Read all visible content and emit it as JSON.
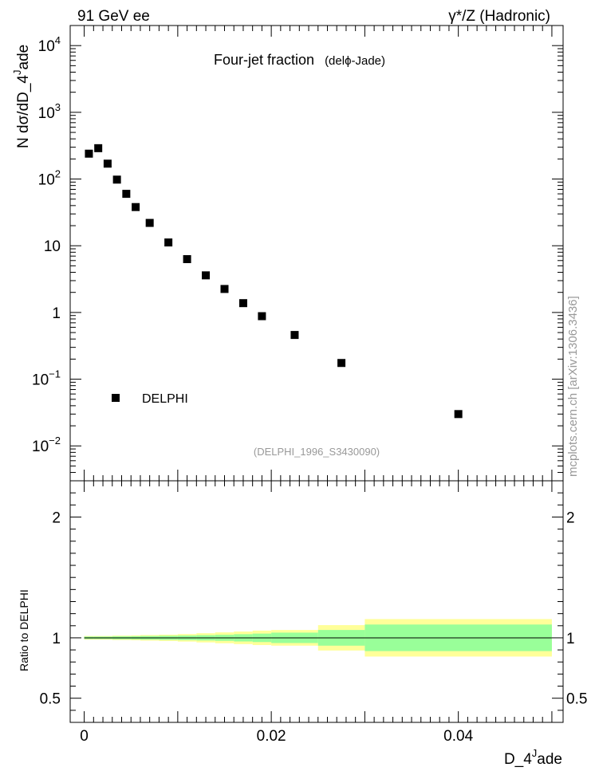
{
  "header": {
    "left": "91 GeV ee",
    "right": "γ*/Z (Hadronic)"
  },
  "watermark": "mcplots.cern.ch [arXiv:1306.3436]",
  "chart_data": [
    {
      "type": "scatter",
      "title": "Four-jet fraction",
      "subtitle": "(delϕ-Jade)",
      "analysis_id": "(DELPHI_1996_S3430090)",
      "ylabel": "N dσ/dD_4^Jade",
      "xlabel": "D_4^Jade",
      "ylog": true,
      "xlim": [
        -0.0015,
        0.0512
      ],
      "ylim": [
        0.003,
        20000
      ],
      "ytick_labels": [
        "10^-2",
        "10^-1",
        "1",
        "10",
        "10^2",
        "10^3",
        "10^4"
      ],
      "xtick_labels": [
        "0",
        "0.02",
        "0.04"
      ],
      "legend": {
        "placement": "middle-left",
        "entries": [
          "DELPHI"
        ]
      },
      "marker_color": "#000000",
      "series": [
        {
          "name": "DELPHI",
          "x": [
            0.0005,
            0.0015,
            0.0025,
            0.0035,
            0.0045,
            0.0055,
            0.007,
            0.009,
            0.011,
            0.013,
            0.015,
            0.017,
            0.019,
            0.0225,
            0.0275,
            0.04
          ],
          "y": [
            240,
            290,
            170,
            98,
            60,
            38,
            22,
            11.2,
            6.3,
            3.6,
            2.25,
            1.38,
            0.88,
            0.46,
            0.175,
            0.03
          ]
        }
      ]
    },
    {
      "type": "area",
      "ylabel": "Ratio to DELPHI",
      "xlabel": "D_4^Jade",
      "xlim": [
        -0.0015,
        0.0512
      ],
      "ylim": [
        0.3,
        2.3
      ],
      "ytick_labels": [
        "0.5",
        "1",
        "2"
      ],
      "xtick_labels": [
        "0",
        "0.02",
        "0.04"
      ],
      "colors": {
        "band_outer": "#ffff99",
        "band_inner": "#99ff99",
        "reference_line": "#000000"
      },
      "bins": [
        {
          "xlo": 0.0,
          "xhi": 0.001,
          "inner": 0.01,
          "outer": 0.015
        },
        {
          "xlo": 0.001,
          "xhi": 0.002,
          "inner": 0.01,
          "outer": 0.015
        },
        {
          "xlo": 0.002,
          "xhi": 0.003,
          "inner": 0.01,
          "outer": 0.015
        },
        {
          "xlo": 0.003,
          "xhi": 0.004,
          "inner": 0.012,
          "outer": 0.018
        },
        {
          "xlo": 0.004,
          "xhi": 0.005,
          "inner": 0.012,
          "outer": 0.018
        },
        {
          "xlo": 0.005,
          "xhi": 0.006,
          "inner": 0.013,
          "outer": 0.02
        },
        {
          "xlo": 0.006,
          "xhi": 0.008,
          "inner": 0.015,
          "outer": 0.023
        },
        {
          "xlo": 0.008,
          "xhi": 0.01,
          "inner": 0.017,
          "outer": 0.026
        },
        {
          "xlo": 0.01,
          "xhi": 0.012,
          "inner": 0.019,
          "outer": 0.031
        },
        {
          "xlo": 0.012,
          "xhi": 0.014,
          "inner": 0.022,
          "outer": 0.038
        },
        {
          "xlo": 0.014,
          "xhi": 0.016,
          "inner": 0.025,
          "outer": 0.045
        },
        {
          "xlo": 0.016,
          "xhi": 0.018,
          "inner": 0.03,
          "outer": 0.052
        },
        {
          "xlo": 0.018,
          "xhi": 0.02,
          "inner": 0.035,
          "outer": 0.06
        },
        {
          "xlo": 0.02,
          "xhi": 0.025,
          "inner": 0.043,
          "outer": 0.065
        },
        {
          "xlo": 0.025,
          "xhi": 0.03,
          "inner": 0.065,
          "outer": 0.105
        },
        {
          "xlo": 0.03,
          "xhi": 0.05,
          "inner": 0.11,
          "outer": 0.155
        }
      ]
    }
  ]
}
